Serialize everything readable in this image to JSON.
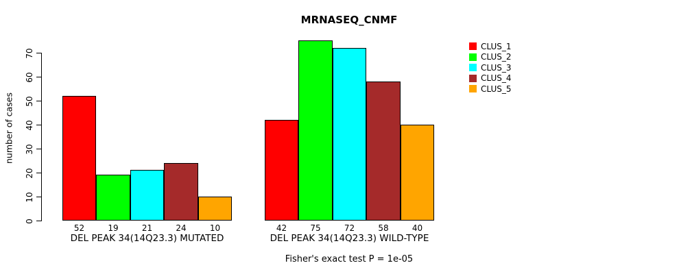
{
  "chart_data": {
    "type": "bar",
    "title": "MRNASEQ_CNMF",
    "ylabel": "number of cases",
    "xlabel": "",
    "yticks": [
      0,
      10,
      20,
      30,
      40,
      50,
      60,
      70
    ],
    "ylim": [
      0,
      75
    ],
    "grid": false,
    "legend_position": "right",
    "bar_border_color": "#000000",
    "categories": [
      "DEL PEAK 34(14Q23.3) MUTATED",
      "DEL PEAK 34(14Q23.3) WILD-TYPE"
    ],
    "series": [
      {
        "name": "CLUS_1",
        "color": "#FF0000",
        "values": [
          52,
          42
        ]
      },
      {
        "name": "CLUS_2",
        "color": "#00FF00",
        "values": [
          19,
          75
        ]
      },
      {
        "name": "CLUS_3",
        "color": "#00FFFF",
        "values": [
          21,
          72
        ]
      },
      {
        "name": "CLUS_4",
        "color": "#A52A2A",
        "values": [
          24,
          58
        ]
      },
      {
        "name": "CLUS_5",
        "color": "#FFA500",
        "values": [
          10,
          40
        ]
      }
    ],
    "value_labels_shown": true,
    "annotation": "Fisher's exact test P = 1e-05"
  }
}
